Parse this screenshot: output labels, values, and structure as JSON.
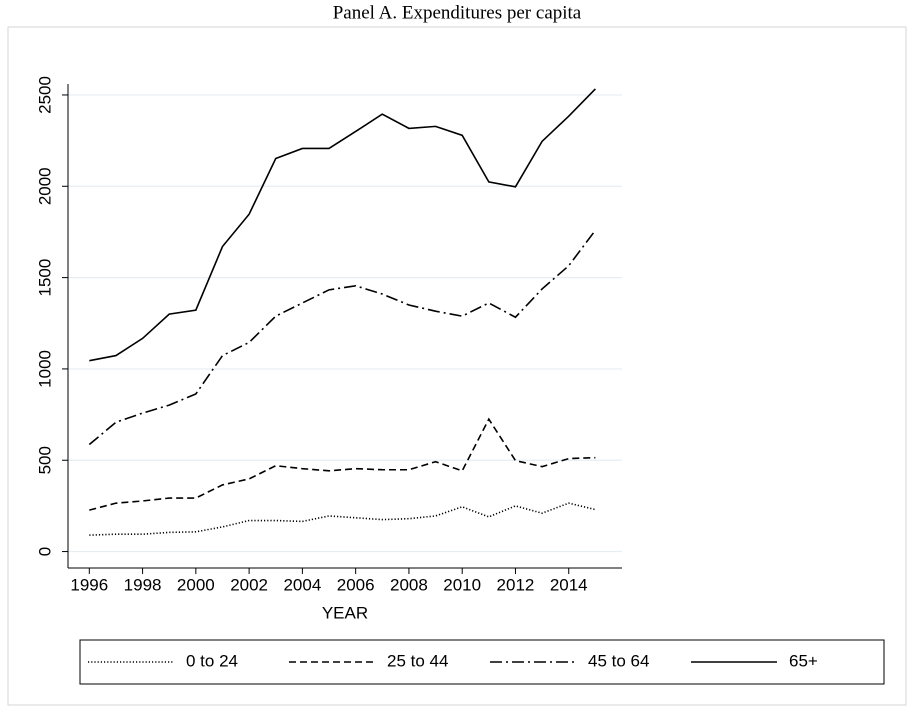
{
  "chart_data": {
    "type": "line",
    "title": "Panel A. Expenditures per capita",
    "x_label": "YEAR",
    "x": [
      1996,
      1997,
      1998,
      1999,
      2000,
      2001,
      2002,
      2003,
      2004,
      2005,
      2006,
      2007,
      2008,
      2009,
      2010,
      2011,
      2012,
      2013,
      2014,
      2015
    ],
    "series": [
      {
        "name": "0 to 24",
        "color": "#000000",
        "dash": "dotted",
        "values": [
          90,
          95,
          95,
          105,
          108,
          135,
          170,
          170,
          165,
          195,
          185,
          175,
          180,
          195,
          245,
          190,
          250,
          210,
          265,
          230
        ]
      },
      {
        "name": "25 to 44",
        "color": "#000000",
        "dash": "dashed",
        "values": [
          227,
          265,
          277,
          293,
          293,
          365,
          398,
          470,
          454,
          442,
          454,
          448,
          448,
          492,
          442,
          725,
          498,
          465,
          509,
          514
        ]
      },
      {
        "name": "45 to 64",
        "color": "#000000",
        "dash": "dash-dot",
        "values": [
          586,
          708,
          758,
          802,
          863,
          1073,
          1145,
          1289,
          1361,
          1433,
          1455,
          1410,
          1350,
          1316,
          1289,
          1361,
          1283,
          1438,
          1565,
          1759
        ]
      },
      {
        "name": "65+",
        "color": "#000000",
        "dash": "solid",
        "values": [
          1045,
          1073,
          1167,
          1300,
          1322,
          1670,
          1847,
          2152,
          2207,
          2207,
          2300,
          2395,
          2317,
          2328,
          2279,
          2024,
          1997,
          2246,
          2384,
          2533
        ]
      }
    ],
    "xlim": [
      1995.2,
      2016
    ],
    "ylim": [
      -90,
      2560
    ],
    "xticks": [
      1996,
      1998,
      2000,
      2002,
      2004,
      2006,
      2008,
      2010,
      2012,
      2014
    ],
    "yticks": [
      0,
      500,
      1000,
      1500,
      2000,
      2500
    ],
    "grid": true,
    "legend": "bottom"
  }
}
